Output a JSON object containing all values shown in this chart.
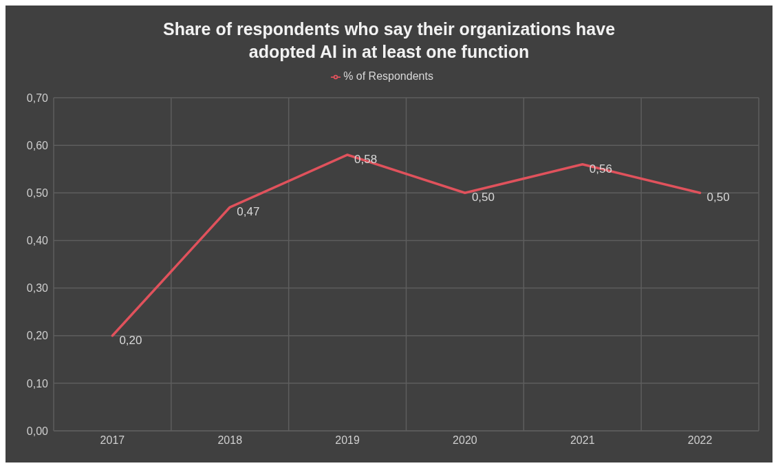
{
  "chart_data": {
    "type": "line",
    "title": "Share of respondents who say their organizations have adopted AI in at least one function",
    "categories": [
      "2017",
      "2018",
      "2019",
      "2020",
      "2021",
      "2022"
    ],
    "series": [
      {
        "name": "% of Respondents",
        "color": "#e0525c",
        "values": [
          0.2,
          0.47,
          0.58,
          0.5,
          0.56,
          0.5
        ],
        "value_labels": [
          "0,20",
          "0,47",
          "0,58",
          "0,50",
          "0,56",
          "0,50"
        ]
      }
    ],
    "ylim": [
      0,
      0.7
    ],
    "yticks": [
      {
        "value": 0,
        "label": "0,00"
      },
      {
        "value": 0.1,
        "label": "0,10"
      },
      {
        "value": 0.2,
        "label": "0,20"
      },
      {
        "value": 0.3,
        "label": "0,30"
      },
      {
        "value": 0.4,
        "label": "0,40"
      },
      {
        "value": 0.5,
        "label": "0,50"
      },
      {
        "value": 0.6,
        "label": "0,60"
      },
      {
        "value": 0.7,
        "label": "0,70"
      }
    ],
    "grid": true,
    "legend": "top",
    "marker": "none",
    "line_style": "solid"
  }
}
